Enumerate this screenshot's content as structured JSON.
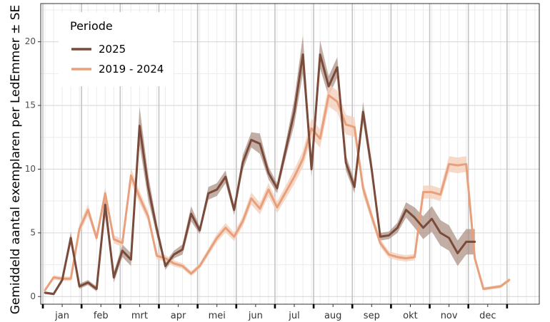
{
  "chart_data": {
    "type": "line",
    "title": "",
    "xlabel": "",
    "ylabel": "Gemiddeld aantal exemplaren per LedEmmer ± SE",
    "ylim": [
      -0.6,
      23.0
    ],
    "yticks": [
      0,
      5,
      10,
      15,
      20
    ],
    "xlim": [
      0.5,
      58.5
    ],
    "months": [
      "jan",
      "feb",
      "mrt",
      "apr",
      "mei",
      "jun",
      "jul",
      "aug",
      "sep",
      "okt",
      "nov",
      "dec"
    ],
    "month_centers": [
      3.0,
      7.5,
      12.0,
      16.5,
      21.0,
      25.5,
      30.0,
      34.5,
      39.0,
      43.5,
      48.0,
      52.5
    ],
    "month_boundaries": [
      0.75,
      5.25,
      9.75,
      14.25,
      18.75,
      23.25,
      27.75,
      32.25,
      36.75,
      41.25,
      45.75,
      50.25,
      54.75
    ],
    "legend": {
      "title": "Periode",
      "position": "top-left"
    },
    "series": [
      {
        "name": "2025",
        "color": "#7a4a3a",
        "band_color": "#a98b80",
        "x": [
          1,
          2,
          3,
          4,
          5,
          6,
          7,
          8,
          9,
          10,
          11,
          12,
          13,
          14,
          15,
          16,
          17,
          18,
          19,
          20,
          21,
          22,
          23,
          24,
          25,
          26,
          27,
          28,
          29,
          30,
          31,
          32,
          33,
          34,
          35,
          36,
          37,
          38,
          39,
          40,
          41,
          42,
          43,
          44,
          45,
          46,
          47,
          48,
          49,
          50,
          51
        ],
        "values": [
          0.3,
          0.2,
          1.3,
          4.6,
          0.8,
          1.1,
          0.6,
          7.2,
          1.5,
          3.6,
          2.9,
          13.4,
          8.6,
          5.3,
          2.4,
          3.3,
          3.7,
          6.5,
          5.2,
          8.1,
          8.4,
          9.4,
          6.8,
          10.5,
          12.3,
          12.0,
          9.7,
          8.5,
          11.5,
          14.5,
          19.0,
          10.0,
          19.0,
          16.5,
          18.0,
          10.5,
          8.6,
          14.5,
          10.0,
          4.7,
          4.8,
          5.4,
          6.8,
          6.2,
          5.4,
          6.1,
          5.0,
          4.6,
          3.4,
          4.3,
          4.3
        ],
        "se": [
          0.1,
          0.1,
          0.2,
          0.5,
          0.2,
          0.2,
          0.2,
          0.9,
          0.4,
          0.5,
          0.5,
          1.5,
          1.0,
          0.5,
          0.3,
          0.3,
          0.4,
          0.6,
          0.3,
          0.5,
          0.5,
          0.5,
          0.4,
          0.6,
          0.6,
          0.8,
          0.5,
          0.4,
          0.6,
          1.0,
          1.5,
          0.6,
          1.1,
          0.8,
          0.8,
          0.6,
          0.5,
          0.8,
          0.6,
          0.3,
          0.3,
          0.4,
          0.6,
          0.8,
          0.9,
          1.0,
          1.0,
          1.0,
          1.0,
          1.0,
          1.0
        ]
      },
      {
        "name": "2019 - 2024",
        "color": "#e8a07c",
        "band_color": "#f4cfbc",
        "x": [
          1,
          2,
          3,
          4,
          5,
          6,
          7,
          8,
          9,
          10,
          11,
          12,
          13,
          14,
          15,
          16,
          17,
          18,
          19,
          20,
          21,
          22,
          23,
          24,
          25,
          26,
          27,
          28,
          29,
          30,
          31,
          32,
          33,
          34,
          35,
          36,
          37,
          38,
          39,
          40,
          41,
          42,
          43,
          44,
          45,
          46,
          47,
          48,
          49,
          50,
          51,
          52,
          53,
          54,
          55
        ],
        "values": [
          0.5,
          1.5,
          1.4,
          1.4,
          5.3,
          6.8,
          4.6,
          8.1,
          4.5,
          4.2,
          9.5,
          7.8,
          6.3,
          3.2,
          3.0,
          2.6,
          2.4,
          1.8,
          2.4,
          3.5,
          4.6,
          5.4,
          4.7,
          5.9,
          7.7,
          6.9,
          8.4,
          7.0,
          8.2,
          9.4,
          10.8,
          13.2,
          12.4,
          15.8,
          15.3,
          13.5,
          13.3,
          8.5,
          6.3,
          4.2,
          3.3,
          3.1,
          3.0,
          3.1,
          8.2,
          8.2,
          8.0,
          10.4,
          10.3,
          10.4,
          3.0,
          0.6,
          0.7,
          0.8,
          1.3
        ]
      }
    ]
  }
}
